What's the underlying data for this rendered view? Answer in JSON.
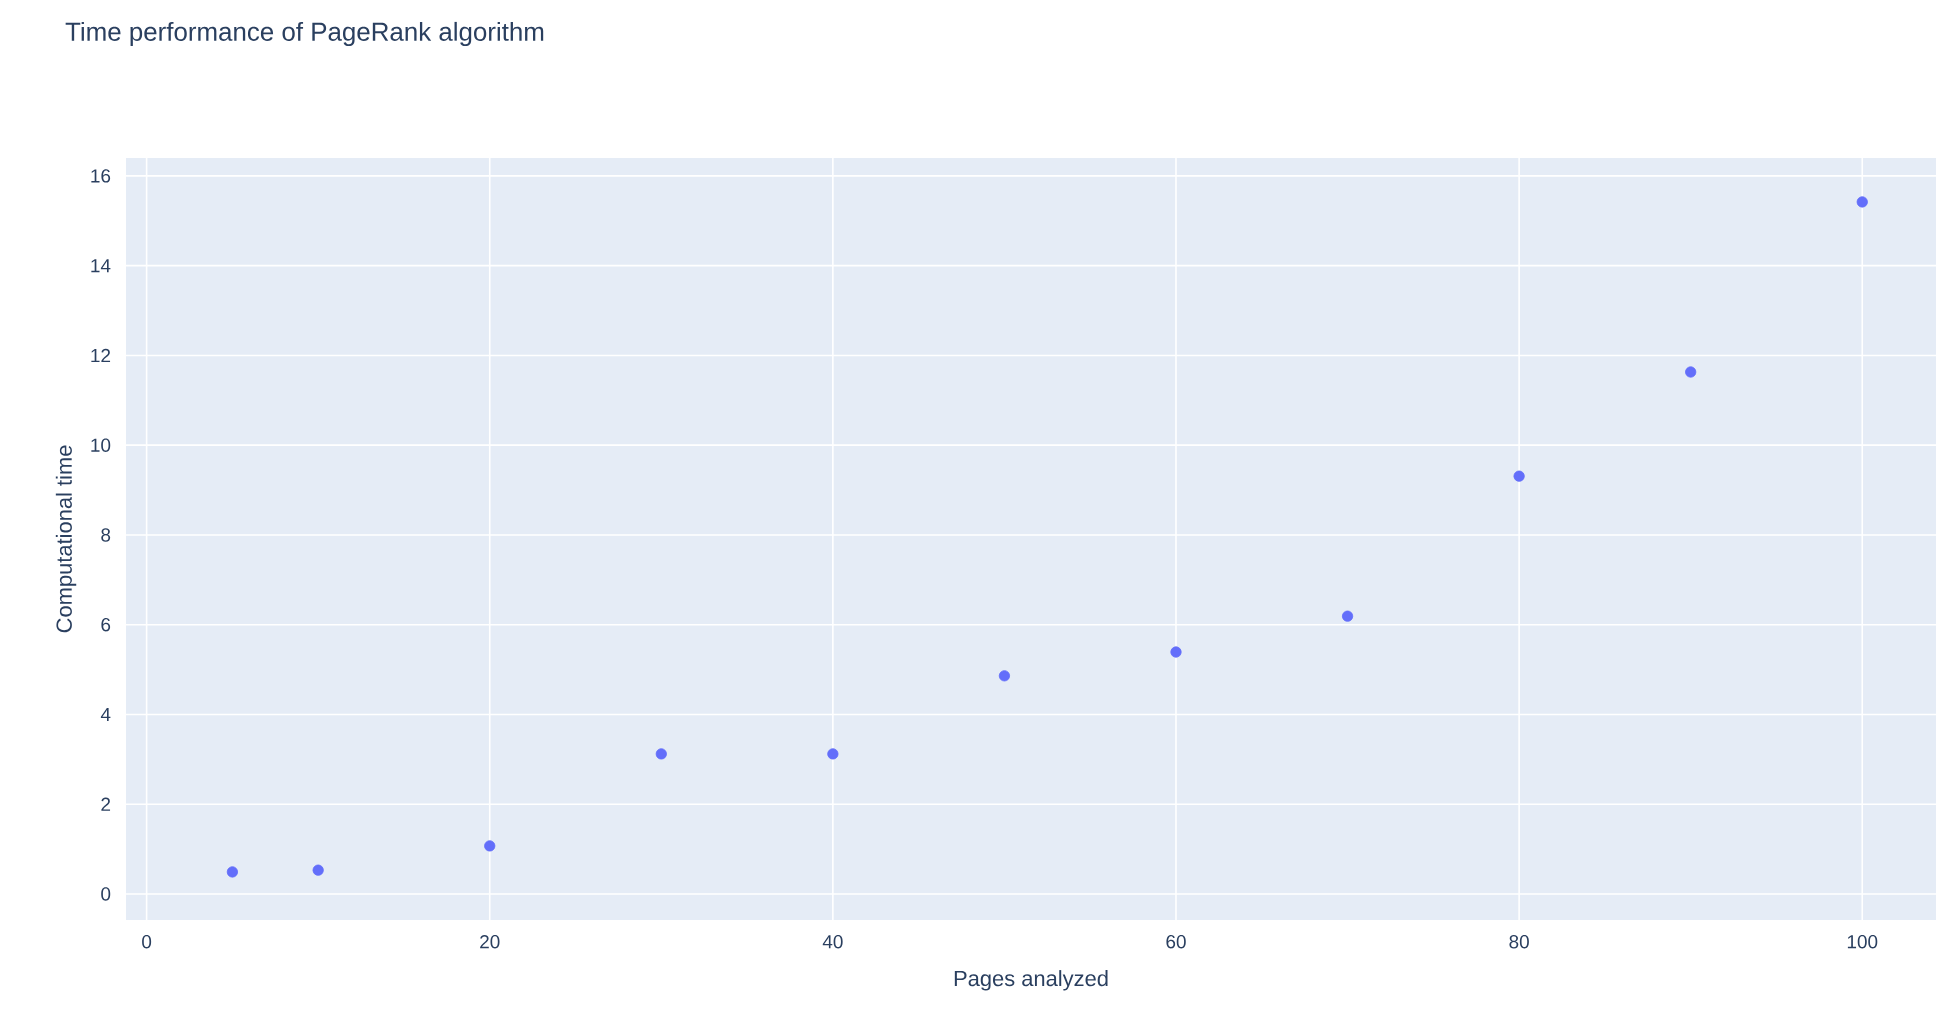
{
  "chart_data": {
    "type": "scatter",
    "title": "Time performance of PageRank algorithm",
    "xlabel": "Pages analyzed",
    "ylabel": "Computational time",
    "x": [
      5,
      10,
      20,
      30,
      40,
      50,
      60,
      70,
      80,
      90,
      100
    ],
    "values": [
      0.49,
      0.53,
      1.07,
      3.12,
      3.12,
      4.86,
      5.39,
      6.19,
      9.31,
      11.63,
      15.42
    ],
    "color": "#636efa",
    "marker": "circle",
    "grid": true,
    "xlim": [
      -1.2,
      104.3
    ],
    "ylim": [
      -0.58,
      16.4
    ],
    "xticks": [
      0,
      20,
      40,
      60,
      80,
      100
    ],
    "yticks": [
      0,
      2,
      4,
      6,
      8,
      10,
      12,
      14,
      16
    ]
  }
}
